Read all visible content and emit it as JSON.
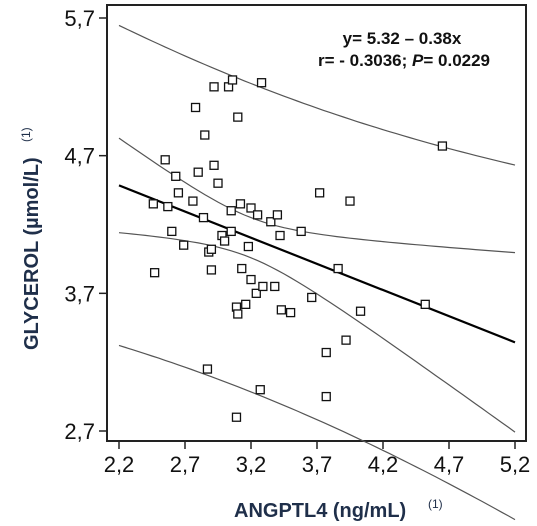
{
  "chart_data": {
    "type": "scatter",
    "xlabel": "ANGPTL4 (ng/mL)",
    "xlabel_superscript": "(1)",
    "ylabel": "GLYCEROL (µmol/L)",
    "ylabel_superscript": "(1)",
    "xlim": [
      2.2,
      5.2
    ],
    "ylim": [
      2.7,
      5.7
    ],
    "xticks": [
      "2,2",
      "2,7",
      "3,2",
      "3,7",
      "4,2",
      "4,7",
      "5,2"
    ],
    "yticks": [
      "2,7",
      "3,7",
      "4,7",
      "5,7"
    ],
    "annotation": {
      "line1": "y= 5.32 – 0.38x",
      "line2_prefix": "r= - 0.3036; ",
      "line2_p": "P",
      "line2_suffix": "= 0.0229"
    },
    "regression": {
      "intercept": 5.32,
      "slope": -0.38
    },
    "points": [
      [
        2.46,
        4.35
      ],
      [
        2.47,
        3.85
      ],
      [
        2.55,
        4.67
      ],
      [
        2.57,
        4.33
      ],
      [
        2.6,
        4.15
      ],
      [
        2.63,
        4.55
      ],
      [
        2.65,
        4.43
      ],
      [
        2.69,
        4.05
      ],
      [
        2.76,
        4.37
      ],
      [
        2.78,
        5.05
      ],
      [
        2.8,
        4.58
      ],
      [
        2.84,
        4.25
      ],
      [
        2.85,
        4.85
      ],
      [
        2.87,
        3.15
      ],
      [
        2.88,
        4.0
      ],
      [
        2.9,
        3.87
      ],
      [
        2.9,
        4.02
      ],
      [
        2.92,
        4.63
      ],
      [
        2.92,
        5.2
      ],
      [
        2.95,
        4.5
      ],
      [
        2.98,
        4.12
      ],
      [
        3.0,
        4.08
      ],
      [
        3.03,
        5.2
      ],
      [
        3.05,
        4.3
      ],
      [
        3.05,
        4.15
      ],
      [
        3.06,
        5.25
      ],
      [
        3.09,
        2.8
      ],
      [
        3.09,
        3.6
      ],
      [
        3.1,
        3.55
      ],
      [
        3.1,
        4.98
      ],
      [
        3.12,
        4.35
      ],
      [
        3.13,
        3.88
      ],
      [
        3.16,
        3.62
      ],
      [
        3.18,
        4.04
      ],
      [
        3.2,
        3.8
      ],
      [
        3.2,
        4.32
      ],
      [
        3.24,
        3.7
      ],
      [
        3.25,
        4.27
      ],
      [
        3.27,
        3.0
      ],
      [
        3.28,
        5.23
      ],
      [
        3.29,
        3.75
      ],
      [
        3.35,
        4.22
      ],
      [
        3.38,
        3.75
      ],
      [
        3.4,
        4.27
      ],
      [
        3.42,
        4.12
      ],
      [
        3.43,
        3.58
      ],
      [
        3.5,
        3.56
      ],
      [
        3.58,
        4.15
      ],
      [
        3.66,
        3.67
      ],
      [
        3.72,
        4.43
      ],
      [
        3.77,
        3.27
      ],
      [
        3.77,
        2.95
      ],
      [
        3.86,
        3.88
      ],
      [
        3.92,
        3.36
      ],
      [
        3.95,
        4.37
      ],
      [
        4.03,
        3.57
      ],
      [
        4.52,
        3.62
      ],
      [
        4.65,
        4.77
      ]
    ]
  }
}
